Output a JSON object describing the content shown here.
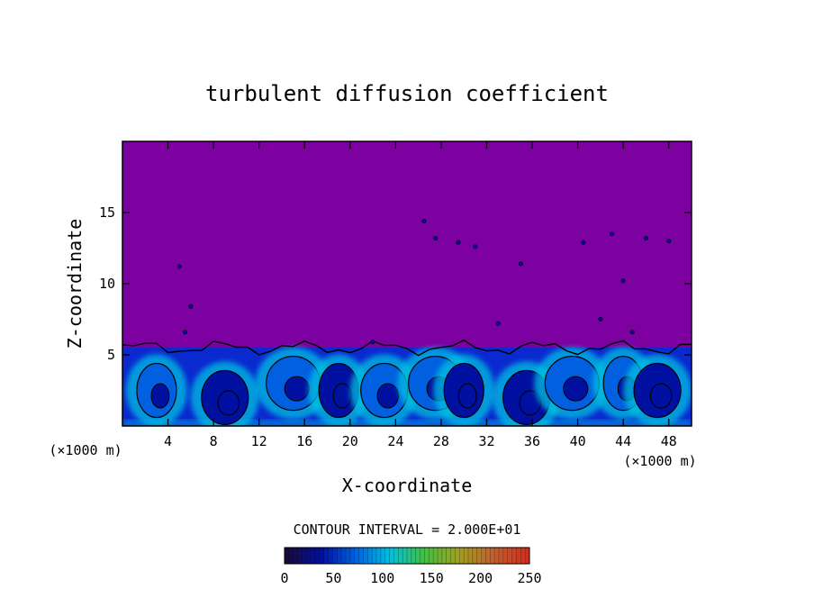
{
  "chart_data": {
    "type": "heatmap",
    "title": "turbulent diffusion coefficient",
    "xlabel": "X-coordinate",
    "ylabel": "Z-coordinate",
    "x_unit": "(×1000 m)",
    "z_unit": "(×1000 m)",
    "xlim": [
      0,
      50
    ],
    "ylim": [
      0,
      20
    ],
    "x_ticks": [
      "4",
      "8",
      "12",
      "16",
      "20",
      "24",
      "28",
      "32",
      "36",
      "40",
      "44",
      "48"
    ],
    "y_ticks": [
      "5",
      "10",
      "15"
    ],
    "contour_interval_label": "CONTOUR INTERVAL = 2.000E+01",
    "colorbar": {
      "range": [
        0,
        250
      ],
      "tick_labels": [
        "0",
        "50",
        "100",
        "150",
        "200",
        "250"
      ],
      "colors": [
        "#1a0a3a",
        "#0010a0",
        "#0060e0",
        "#00c0e0",
        "#40c040",
        "#a0a020",
        "#c06030",
        "#d03020"
      ]
    },
    "background_value": 0,
    "background_color": "#7d00a0",
    "mixed_layer_top_km": 5.5,
    "boundary_layer_eddies": [
      {
        "x_km": 3,
        "z_km": 2.5,
        "value": 40
      },
      {
        "x_km": 9,
        "z_km": 2.0,
        "value": 20
      },
      {
        "x_km": 15,
        "z_km": 3.0,
        "value": 40
      },
      {
        "x_km": 19,
        "z_km": 2.5,
        "value": 20
      },
      {
        "x_km": 23,
        "z_km": 2.5,
        "value": 40
      },
      {
        "x_km": 27.5,
        "z_km": 3.0,
        "value": 40
      },
      {
        "x_km": 30,
        "z_km": 2.5,
        "value": 20
      },
      {
        "x_km": 35.5,
        "z_km": 2.0,
        "value": 20
      },
      {
        "x_km": 39.5,
        "z_km": 3.0,
        "value": 40
      },
      {
        "x_km": 44,
        "z_km": 3.0,
        "value": 40
      },
      {
        "x_km": 47,
        "z_km": 2.5,
        "value": 20
      }
    ]
  }
}
